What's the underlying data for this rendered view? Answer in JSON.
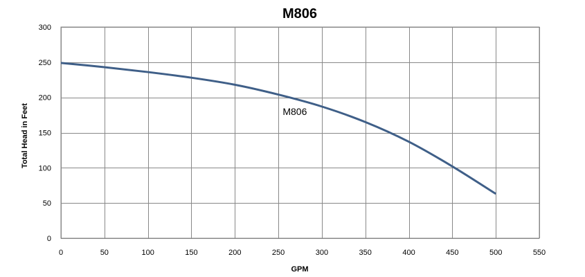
{
  "chart_data": {
    "type": "line",
    "title": "M806",
    "xlabel": "GPM",
    "ylabel": "Total Head in Feet",
    "xlim": [
      0,
      550
    ],
    "ylim": [
      0,
      300
    ],
    "x_ticks": [
      0,
      50,
      100,
      150,
      200,
      250,
      300,
      350,
      400,
      450,
      500,
      550
    ],
    "y_ticks": [
      0,
      50,
      100,
      150,
      200,
      250,
      300
    ],
    "grid": true,
    "legend": "none",
    "series": [
      {
        "name": "M806",
        "color": "#3F5F88",
        "x": [
          0,
          50,
          100,
          150,
          200,
          250,
          300,
          350,
          400,
          450,
          500
        ],
        "y": [
          249,
          243,
          236,
          228,
          218,
          204,
          187,
          165,
          137,
          102,
          63
        ]
      }
    ],
    "annotations": [
      {
        "text": "M806",
        "x": 255,
        "y": 175
      }
    ]
  }
}
